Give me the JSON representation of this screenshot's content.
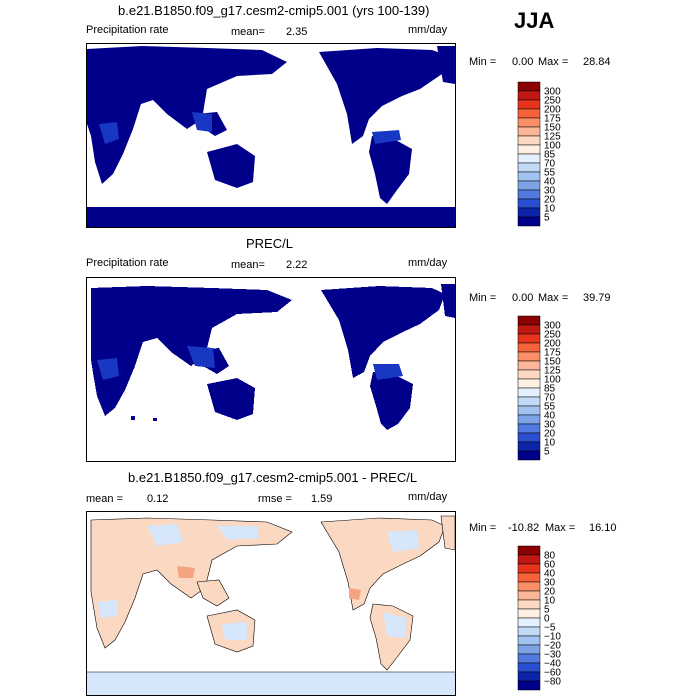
{
  "season": "JJA",
  "panels": [
    {
      "id": "model",
      "title": "b.e21.B1850.f09_g17.cesm2-cmip5.001 (yrs 100-139)",
      "variable": "Precipitation rate",
      "mean_label": "mean=",
      "mean_value": "2.35",
      "units": "mm/day",
      "min_label": "Min =",
      "min_value": "0.00",
      "max_label": "Max =",
      "max_value": "28.84",
      "colorbar_labels": [
        "300",
        "250",
        "200",
        "175",
        "150",
        "125",
        "100",
        "85",
        "70",
        "55",
        "40",
        "30",
        "20",
        "10",
        "5"
      ],
      "colorbar_colors": [
        "#8b0000",
        "#c01812",
        "#e8341c",
        "#f6623a",
        "#fb8f67",
        "#fcb699",
        "#fdd9c4",
        "#fff0e4",
        "#e4efff",
        "#c3daf7",
        "#a2c2f0",
        "#7ea4e8",
        "#5279df",
        "#2a4fd0",
        "#0c24a8",
        "#00008a"
      ]
    },
    {
      "id": "obs",
      "title": "PREC/L",
      "variable": "Precipitation rate",
      "mean_label": "mean=",
      "mean_value": "2.22",
      "units": "mm/day",
      "min_label": "Min =",
      "min_value": "0.00",
      "max_label": "Max =",
      "max_value": "39.79",
      "colorbar_labels": [
        "300",
        "250",
        "200",
        "175",
        "150",
        "125",
        "100",
        "85",
        "70",
        "55",
        "40",
        "30",
        "20",
        "10",
        "5"
      ],
      "colorbar_colors": [
        "#8b0000",
        "#c01812",
        "#e8341c",
        "#f6623a",
        "#fb8f67",
        "#fcb699",
        "#fdd9c4",
        "#fff0e4",
        "#e4efff",
        "#c3daf7",
        "#a2c2f0",
        "#7ea4e8",
        "#5279df",
        "#2a4fd0",
        "#0c24a8",
        "#00008a"
      ]
    },
    {
      "id": "diff",
      "title": "b.e21.B1850.f09_g17.cesm2-cmip5.001 - PREC/L",
      "mean_label": "mean =",
      "mean_value": "0.12",
      "rmse_label": "rmse =",
      "rmse_value": "1.59",
      "units": "mm/day",
      "min_label": "Min =",
      "min_value": "-10.82",
      "max_label": "Max =",
      "max_value": "16.10",
      "colorbar_labels": [
        "80",
        "60",
        "40",
        "30",
        "20",
        "10",
        "5",
        "0",
        "−5",
        "−10",
        "−20",
        "−30",
        "−40",
        "−60",
        "−80"
      ],
      "colorbar_colors": [
        "#8b0000",
        "#c01812",
        "#e8341c",
        "#f6623a",
        "#fb8f67",
        "#fcb699",
        "#fdd9c4",
        "#fff0e4",
        "#e4efff",
        "#c3daf7",
        "#a2c2f0",
        "#7ea4e8",
        "#5279df",
        "#2a4fd0",
        "#0c24a8",
        "#00008a"
      ]
    }
  ],
  "colors": {
    "land_dry": "#00008a",
    "land_wet": "#1030b8",
    "diff_pos": "#fbd8c2",
    "diff_neg": "#d6e6fb",
    "diff_strong_pos": "#f4a47e"
  }
}
